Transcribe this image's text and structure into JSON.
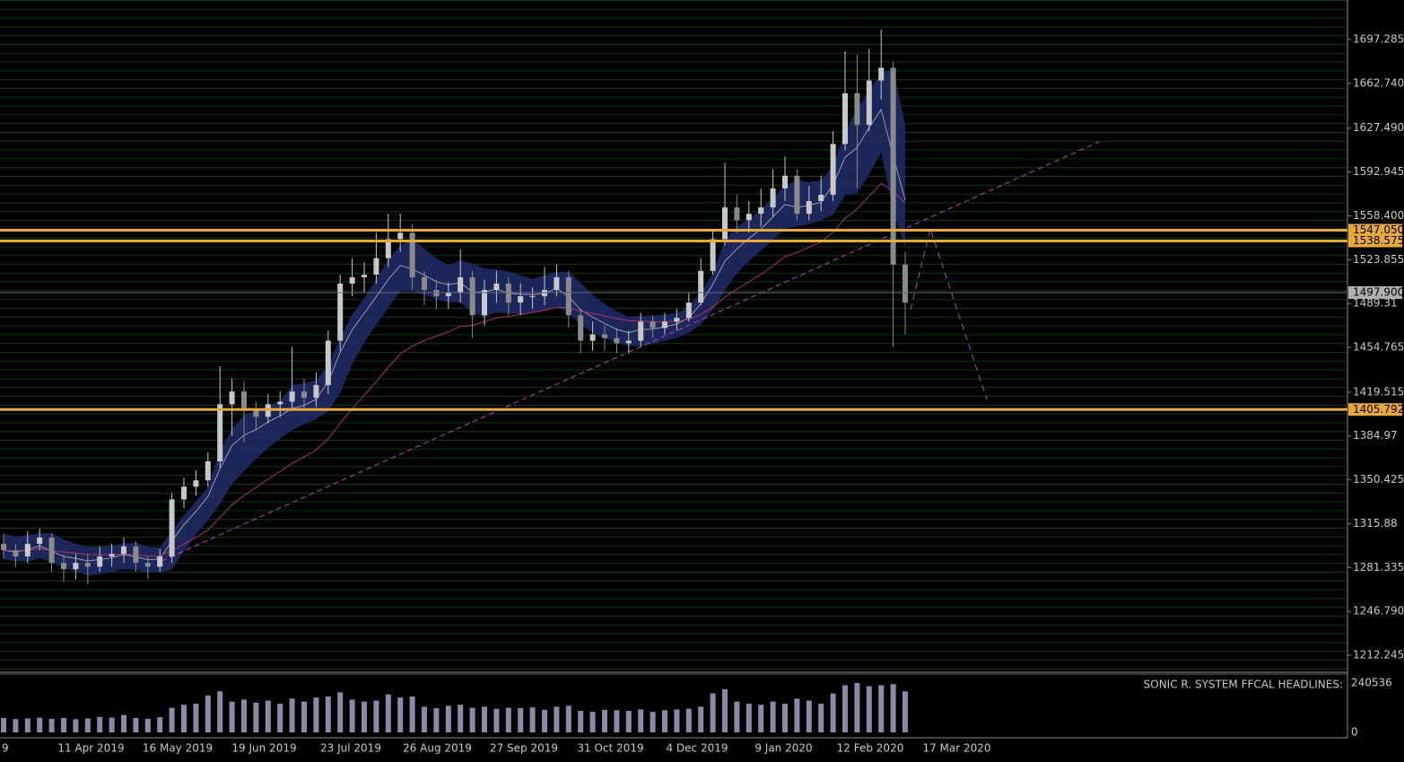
{
  "chart_data": {
    "type": "candlestick",
    "dates": [
      "9",
      "11 Apr 2019",
      "16 May 2019",
      "19 Jun 2019",
      "23 Jul 2019",
      "26 Aug 2019",
      "27 Sep 2019",
      "31 Oct 2019",
      "4 Dec 2019",
      "9 Jan 2020",
      "12 Feb 2020",
      "17 Mar 2020"
    ],
    "open": [
      1300,
      1295,
      1290,
      1300,
      1305,
      1285,
      1280,
      1285,
      1282,
      1290,
      1292,
      1298,
      1285,
      1282,
      1290,
      1335,
      1345,
      1350,
      1365,
      1410,
      1420,
      1405,
      1400,
      1410,
      1412,
      1420,
      1415,
      1425,
      1460,
      1505,
      1510,
      1512,
      1525,
      1540,
      1545,
      1510,
      1500,
      1495,
      1498,
      1510,
      1480,
      1500,
      1505,
      1490,
      1495,
      1495,
      1500,
      1510,
      1480,
      1460,
      1465,
      1462,
      1458,
      1460,
      1475,
      1470,
      1475,
      1478,
      1490,
      1515,
      1540,
      1565,
      1555,
      1560,
      1565,
      1580,
      1590,
      1560,
      1570,
      1575,
      1615,
      1655,
      1630,
      1665,
      1675,
      1520
    ],
    "high": [
      1308,
      1300,
      1310,
      1312,
      1308,
      1292,
      1292,
      1292,
      1298,
      1300,
      1305,
      1302,
      1290,
      1296,
      1340,
      1352,
      1358,
      1372,
      1440,
      1430,
      1428,
      1412,
      1418,
      1420,
      1455,
      1430,
      1435,
      1468,
      1512,
      1525,
      1522,
      1545,
      1560,
      1560,
      1552,
      1515,
      1508,
      1506,
      1532,
      1515,
      1508,
      1515,
      1510,
      1505,
      1502,
      1518,
      1520,
      1515,
      1485,
      1475,
      1472,
      1470,
      1468,
      1482,
      1480,
      1482,
      1485,
      1498,
      1525,
      1548,
      1600,
      1575,
      1570,
      1580,
      1595,
      1605,
      1595,
      1582,
      1590,
      1625,
      1688,
      1685,
      1690,
      1705,
      1680,
      1530
    ],
    "low": [
      1288,
      1282,
      1285,
      1295,
      1278,
      1270,
      1272,
      1268,
      1278,
      1282,
      1285,
      1278,
      1272,
      1278,
      1285,
      1328,
      1338,
      1345,
      1360,
      1385,
      1380,
      1390,
      1395,
      1400,
      1405,
      1405,
      1408,
      1418,
      1452,
      1495,
      1498,
      1505,
      1518,
      1530,
      1500,
      1488,
      1485,
      1485,
      1490,
      1462,
      1472,
      1490,
      1480,
      1480,
      1485,
      1488,
      1495,
      1470,
      1450,
      1452,
      1452,
      1450,
      1450,
      1455,
      1462,
      1465,
      1468,
      1475,
      1488,
      1512,
      1535,
      1545,
      1545,
      1550,
      1558,
      1570,
      1555,
      1555,
      1562,
      1570,
      1610,
      1580,
      1625,
      1650,
      1455,
      1465
    ],
    "close": [
      1295,
      1290,
      1300,
      1305,
      1285,
      1280,
      1285,
      1282,
      1290,
      1292,
      1298,
      1285,
      1282,
      1290,
      1335,
      1345,
      1350,
      1365,
      1410,
      1420,
      1405,
      1400,
      1410,
      1412,
      1420,
      1415,
      1425,
      1460,
      1505,
      1510,
      1512,
      1525,
      1540,
      1545,
      1510,
      1500,
      1495,
      1498,
      1510,
      1480,
      1500,
      1505,
      1490,
      1495,
      1495,
      1500,
      1510,
      1480,
      1460,
      1465,
      1462,
      1458,
      1460,
      1475,
      1470,
      1475,
      1478,
      1490,
      1515,
      1540,
      1565,
      1555,
      1560,
      1565,
      1580,
      1590,
      1560,
      1570,
      1575,
      1615,
      1655,
      1630,
      1665,
      1675,
      1520,
      1490
    ],
    "volume": [
      70000,
      65000,
      68000,
      72000,
      66000,
      70000,
      64000,
      68000,
      75000,
      72000,
      85000,
      70000,
      66000,
      74000,
      120000,
      135000,
      140000,
      180000,
      200000,
      150000,
      160000,
      145000,
      155000,
      140000,
      165000,
      150000,
      170000,
      175000,
      195000,
      160000,
      150000,
      155000,
      185000,
      170000,
      175000,
      125000,
      118000,
      130000,
      135000,
      120000,
      125000,
      115000,
      120000,
      118000,
      122000,
      110000,
      125000,
      130000,
      105000,
      100000,
      110000,
      108000,
      105000,
      112000,
      100000,
      108000,
      112000,
      115000,
      125000,
      190000,
      210000,
      150000,
      140000,
      135000,
      150000,
      140000,
      165000,
      155000,
      140000,
      190000,
      230000,
      240536,
      225000,
      230000,
      235000,
      200000
    ],
    "ylim": [
      1199.52,
      1728.4
    ],
    "yticks": [
      1697.285,
      {
        "value": 1662.74,
        "label": "1662.740"
      },
      {
        "value": 1627.49,
        "label": "1627.490"
      },
      1592.945,
      {
        "value": 1558.4,
        "label": "1558.400"
      },
      1523.855,
      1489.31,
      1454.765,
      1419.515,
      1384.97,
      1350.425,
      1315.88,
      1281.335,
      {
        "value": 1246.79,
        "label": "1246.790"
      },
      1212.245
    ],
    "levels": [
      {
        "value": 1547.05,
        "label": "1547.050"
      },
      1538.575,
      1405.792
    ],
    "current_price": {
      "value": 1497.9,
      "label": "1497.900"
    },
    "volume_ylim": [
      0,
      280000
    ],
    "volume_yticks": [
      240536,
      0
    ],
    "indicator_label": "SONIC R. SYSTEM  FFCAL HEADLINES:",
    "up_color": "#c8c8c8",
    "down_color": "#8a8a8a",
    "level_color": "#e8a93a",
    "volume_color": "#8a8aa8"
  }
}
